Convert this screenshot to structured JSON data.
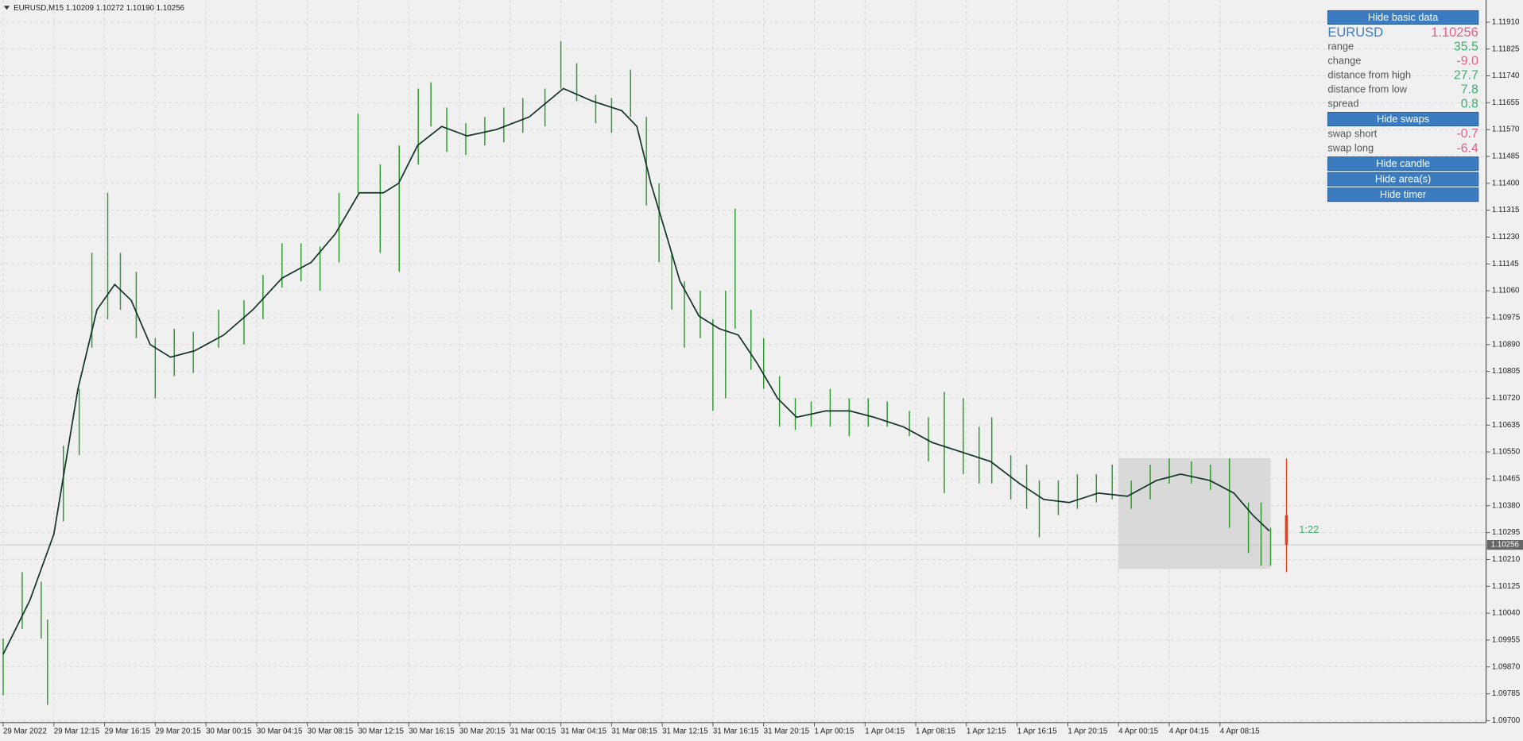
{
  "header": "EURUSD,M15  1.10209 1.10272 1.10190 1.10256",
  "panel": {
    "toggle_basic": "Hide basic data",
    "symbol": "EURUSD",
    "price": "1.10256",
    "basic_rows": [
      {
        "label": "range",
        "value": "35.5",
        "color": "#3aae6e"
      },
      {
        "label": "change",
        "value": "-9.0",
        "color": "#e0608a"
      },
      {
        "label": "distance from high",
        "value": "27.7",
        "color": "#3aae6e"
      },
      {
        "label": "distance from low",
        "value": "7.8",
        "color": "#3aae6e"
      },
      {
        "label": "spread",
        "value": "0.8",
        "color": "#3aae6e"
      }
    ],
    "toggle_swaps": "Hide swaps",
    "swap_rows": [
      {
        "label": "swap short",
        "value": "-0.7",
        "color": "#e0608a"
      },
      {
        "label": "swap long",
        "value": "-6.4",
        "color": "#e0608a"
      }
    ],
    "toggle_candle": "Hide candle",
    "toggle_area": "Hide area(s)",
    "toggle_timer": "Hide timer"
  },
  "chart_data": {
    "type": "range_bar",
    "color": "#2e9a2e",
    "x": [
      0,
      1.5,
      3,
      3.5,
      4.75,
      6,
      7,
      8.25,
      9.25,
      10.5,
      12,
      13.5,
      15,
      17,
      19,
      20.5,
      22,
      23.5,
      25,
      26.5,
      28,
      29.75,
      31.25,
      32.75,
      33.75,
      35,
      36.5,
      38,
      39.5,
      41,
      42.75,
      44,
      45.25,
      46.75,
      48,
      49.5,
      50.75,
      51.75,
      52.75,
      53.75,
      55,
      56,
      57,
      57.75,
      59,
      60,
      61.25,
      62.5,
      63.75,
      65.25,
      66.75,
      68.25,
      69.75,
      71.5,
      73,
      74.25,
      75.75,
      77,
      78,
      79.5,
      80.75,
      81.75,
      83.25,
      84.75,
      86.25,
      87.5,
      89,
      90.5,
      92,
      93.75,
      95.25,
      96.75,
      98.25,
      99.25,
      100
    ],
    "high": [
      1.0996,
      1.1017,
      1.1014,
      1.1002,
      1.1057,
      1.1075,
      1.1118,
      1.1137,
      1.1118,
      1.1112,
      1.1091,
      1.1094,
      1.1093,
      1.11,
      1.1103,
      1.1111,
      1.1121,
      1.1121,
      1.112,
      1.1137,
      1.1162,
      1.1146,
      1.1152,
      1.117,
      1.1172,
      1.1164,
      1.1159,
      1.1161,
      1.1164,
      1.1167,
      1.117,
      1.1185,
      1.1178,
      1.1168,
      1.1167,
      1.1176,
      1.1161,
      1.114,
      1.1118,
      1.1109,
      1.1106,
      1.1097,
      1.1106,
      1.1132,
      1.11,
      1.1091,
      1.1079,
      1.1072,
      1.1071,
      1.1075,
      1.1072,
      1.1072,
      1.1071,
      1.1068,
      1.1066,
      1.1074,
      1.1072,
      1.1063,
      1.1066,
      1.1054,
      1.1051,
      1.1046,
      1.1046,
      1.1048,
      1.1048,
      1.1051,
      1.1046,
      1.1051,
      1.1053,
      1.1052,
      1.1051,
      1.1053,
      1.1039,
      1.1039,
      1.1031
    ],
    "low": [
      1.0978,
      1.0999,
      1.0996,
      1.0975,
      1.1033,
      1.1054,
      1.1088,
      1.1097,
      1.11,
      1.1091,
      1.1072,
      1.1079,
      1.108,
      1.1088,
      1.1089,
      1.1097,
      1.1107,
      1.1109,
      1.1106,
      1.1115,
      1.1137,
      1.1118,
      1.1112,
      1.1146,
      1.1158,
      1.115,
      1.1149,
      1.1152,
      1.1153,
      1.1156,
      1.1158,
      1.117,
      1.1166,
      1.1159,
      1.1156,
      1.1161,
      1.1133,
      1.1115,
      1.11,
      1.1088,
      1.1091,
      1.1068,
      1.1072,
      1.1094,
      1.1081,
      1.1075,
      1.1063,
      1.1062,
      1.1063,
      1.1063,
      1.106,
      1.1063,
      1.1063,
      1.106,
      1.1052,
      1.1042,
      1.1048,
      1.1045,
      1.1045,
      1.104,
      1.1037,
      1.1028,
      1.1035,
      1.1037,
      1.1039,
      1.104,
      1.1037,
      1.104,
      1.1045,
      1.1045,
      1.1043,
      1.1031,
      1.1023,
      1.1019,
      1.1019
    ],
    "ma": {
      "color": "#12332a",
      "x": [
        0,
        2.1,
        4,
        5.9,
        7.4,
        8.8,
        10.1,
        11.6,
        13.2,
        15.1,
        17.4,
        19.7,
        22,
        24.3,
        26.2,
        28.1,
        30,
        31.2,
        32.7,
        34.6,
        36.6,
        38.9,
        41.5,
        44.2,
        46.5,
        48.8,
        50,
        51.1,
        52.3,
        53.4,
        54.9,
        56.5,
        58,
        59.5,
        61.1,
        62.6,
        64.9,
        66.8,
        68.7,
        71,
        73.3,
        75.6,
        77.9,
        80.2,
        82.1,
        84.1,
        86.4,
        88.7,
        91,
        92.9,
        95.2,
        97.1,
        98.6,
        99.9
      ],
      "values": [
        1.0991,
        1.1008,
        1.1029,
        1.1075,
        1.11,
        1.1108,
        1.1103,
        1.1089,
        1.1085,
        1.1087,
        1.1092,
        1.11,
        1.111,
        1.1115,
        1.1124,
        1.1137,
        1.1137,
        1.114,
        1.1152,
        1.1158,
        1.1155,
        1.1157,
        1.1161,
        1.117,
        1.1166,
        1.1163,
        1.1158,
        1.114,
        1.1124,
        1.1109,
        1.1098,
        1.1094,
        1.1092,
        1.1083,
        1.1072,
        1.1066,
        1.1068,
        1.1068,
        1.1066,
        1.1063,
        1.1058,
        1.1055,
        1.1052,
        1.1045,
        1.104,
        1.1039,
        1.1042,
        1.1041,
        1.1046,
        1.1048,
        1.1046,
        1.1042,
        1.1035,
        1.103
      ]
    },
    "xlim": [
      -0.25,
      117
    ],
    "xticks": [
      {
        "value": 0,
        "label": "29 Mar 2022"
      },
      {
        "value": 4,
        "label": "29 Mar 12:15"
      },
      {
        "value": 8,
        "label": "29 Mar 16:15"
      },
      {
        "value": 12,
        "label": "29 Mar 20:15"
      },
      {
        "value": 16,
        "label": "30 Mar 00:15"
      },
      {
        "value": 20,
        "label": "30 Mar 04:15"
      },
      {
        "value": 24,
        "label": "30 Mar 08:15"
      },
      {
        "value": 28,
        "label": "30 Mar 12:15"
      },
      {
        "value": 32,
        "label": "30 Mar 16:15"
      },
      {
        "value": 36,
        "label": "30 Mar 20:15"
      },
      {
        "value": 40,
        "label": "31 Mar 00:15"
      },
      {
        "value": 44,
        "label": "31 Mar 04:15"
      },
      {
        "value": 48,
        "label": "31 Mar 08:15"
      },
      {
        "value": 52,
        "label": "31 Mar 12:15"
      },
      {
        "value": 56,
        "label": "31 Mar 16:15"
      },
      {
        "value": 60,
        "label": "31 Mar 20:15"
      },
      {
        "value": 64,
        "label": "1 Apr 00:15"
      },
      {
        "value": 68,
        "label": "1 Apr 04:15"
      },
      {
        "value": 72,
        "label": "1 Apr 08:15"
      },
      {
        "value": 76,
        "label": "1 Apr 12:15"
      },
      {
        "value": 80,
        "label": "1 Apr 16:15"
      },
      {
        "value": 84,
        "label": "1 Apr 20:15"
      },
      {
        "value": 88,
        "label": "4 Apr 00:15"
      },
      {
        "value": 92,
        "label": "4 Apr 04:15"
      },
      {
        "value": 96,
        "label": "4 Apr 08:15"
      }
    ],
    "ylim": [
      1.097,
      1.1198
    ],
    "yticks": [
      {
        "value": 1.1191,
        "label": "1.11910"
      },
      1.11825,
      {
        "value": 1.1174,
        "label": "1.11740"
      },
      1.11655,
      {
        "value": 1.1157,
        "label": "1.11570"
      },
      1.11485,
      {
        "value": 1.114,
        "label": "1.11400"
      },
      1.11315,
      {
        "value": 1.1123,
        "label": "1.11230"
      },
      1.11145,
      {
        "value": 1.1106,
        "label": "1.11060"
      },
      1.10975,
      {
        "value": 1.1089,
        "label": "1.10890"
      },
      1.10805,
      {
        "value": 1.1072,
        "label": "1.10720"
      },
      1.10635,
      {
        "value": 1.1055,
        "label": "1.10550"
      },
      1.10465,
      {
        "value": 1.1038,
        "label": "1.10380"
      },
      1.10295,
      {
        "value": 1.1021,
        "label": "1.10210"
      },
      1.10125,
      {
        "value": 1.1004,
        "label": "1.10040"
      },
      1.09955,
      {
        "value": 1.0987,
        "label": "1.09870"
      },
      1.09785,
      {
        "value": 1.097,
        "label": "1.09700"
      }
    ],
    "grid": true,
    "current_price": {
      "value": 1.10256,
      "label": "1.10256"
    },
    "area": {
      "x0": 88,
      "x1": 100,
      "high": 1.1053,
      "low": 1.1018,
      "color": "#d9d9d9"
    },
    "candle": {
      "x": 101.25,
      "open": 1.1035,
      "close": 1.10256,
      "high": 1.1053,
      "low": 1.1017,
      "color": "#e8401c"
    },
    "timer": "1:22"
  }
}
